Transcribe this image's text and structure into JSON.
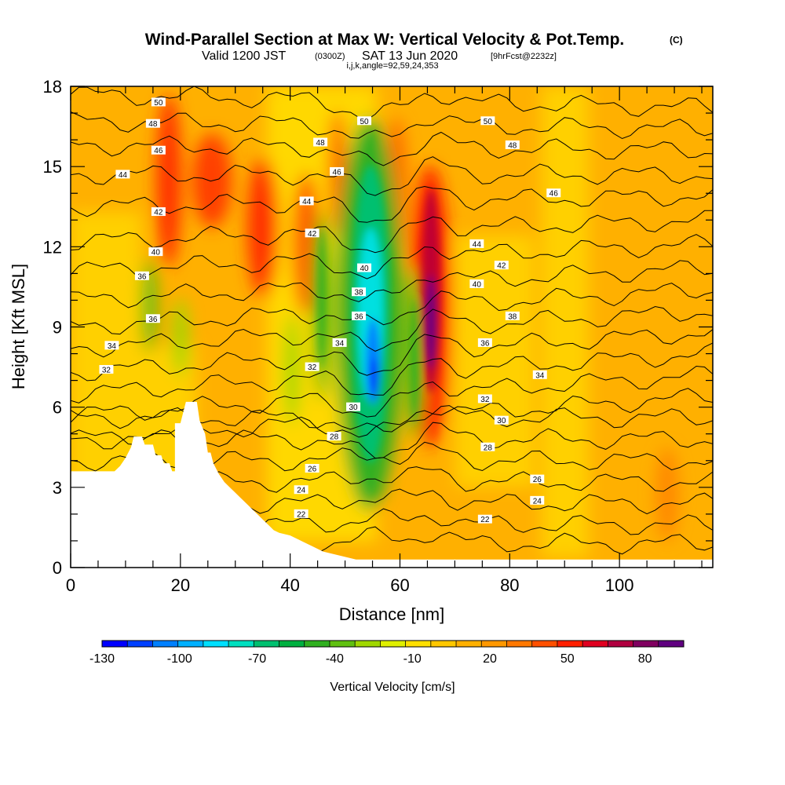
{
  "title": {
    "main": "Wind-Parallel Section at Max W: Vertical Velocity & Pot.Temp.",
    "copyright": "(C)",
    "valid_prefix": "Valid 1200 JST",
    "valid_utc": "(0300Z)",
    "valid_date": "SAT 13 Jun 2020",
    "forecast": "[9hrFcst@2232z]",
    "indices": "i,j,k,angle=92,59,24,353"
  },
  "colors": {
    "background_default": "#ffb000",
    "colorbar": [
      "#0000ff",
      "#0040ff",
      "#0080ff",
      "#00b0ff",
      "#00e0ff",
      "#00e0c0",
      "#00c070",
      "#00b040",
      "#30b020",
      "#60c010",
      "#a0d800",
      "#e0f000",
      "#ffe000",
      "#ffc800",
      "#ffb000",
      "#ff9800",
      "#ff7800",
      "#ff5000",
      "#ff2000",
      "#e00020",
      "#b00040",
      "#800060",
      "#600080"
    ]
  },
  "chart_data": {
    "type": "heatmap",
    "xlabel": "Distance [nm]",
    "ylabel": "Height [Kft MSL]",
    "xlim": [
      0,
      117
    ],
    "ylim": [
      0,
      18
    ],
    "x_ticks": [
      0,
      20,
      40,
      60,
      80,
      100
    ],
    "y_ticks": [
      0,
      3,
      6,
      9,
      12,
      15,
      18
    ],
    "colorbar": {
      "label": "Vertical Velocity [cm/s]",
      "tick_labels": [
        "-130",
        "-100",
        "-70",
        "-40",
        "-10",
        "20",
        "50",
        "80"
      ],
      "range": [
        -130,
        95
      ]
    },
    "terrain_profile": [
      [
        0,
        3.6
      ],
      [
        8,
        3.6
      ],
      [
        9,
        3.8
      ],
      [
        10,
        4.1
      ],
      [
        11,
        4.5
      ],
      [
        11.5,
        4.9
      ],
      [
        13,
        4.9
      ],
      [
        13.5,
        4.6
      ],
      [
        15,
        4.6
      ],
      [
        15.5,
        4.2
      ],
      [
        16.5,
        4.2
      ],
      [
        17,
        3.9
      ],
      [
        18,
        3.9
      ],
      [
        18.5,
        3.6
      ],
      [
        19,
        3.6
      ],
      [
        19,
        5.4
      ],
      [
        20,
        5.4
      ],
      [
        20.5,
        5.8
      ],
      [
        21,
        6.2
      ],
      [
        23,
        6.2
      ],
      [
        23.5,
        5.5
      ],
      [
        24.5,
        5.0
      ],
      [
        25,
        4.3
      ],
      [
        25.5,
        4.3
      ],
      [
        26,
        3.9
      ],
      [
        27,
        3.5
      ],
      [
        28,
        3.2
      ],
      [
        29,
        3.0
      ],
      [
        30,
        2.8
      ],
      [
        31,
        2.6
      ],
      [
        32,
        2.4
      ],
      [
        33,
        2.2
      ],
      [
        34,
        2.0
      ],
      [
        35,
        1.8
      ],
      [
        36,
        1.6
      ],
      [
        37,
        1.4
      ],
      [
        38,
        1.3
      ],
      [
        40,
        1.2
      ],
      [
        42,
        1.0
      ],
      [
        44,
        0.8
      ],
      [
        46,
        0.6
      ],
      [
        48,
        0.5
      ],
      [
        50,
        0.4
      ],
      [
        52,
        0.3
      ],
      [
        60,
        0.3
      ],
      [
        117,
        0.3
      ]
    ],
    "vertical_velocity_features": [
      {
        "x": 36,
        "y": 12,
        "value": 50
      },
      {
        "x": 66,
        "y": 10,
        "value": 90
      },
      {
        "x": 56,
        "y": 7,
        "value": -130
      },
      {
        "x": 45,
        "y": 8,
        "value": -40
      },
      {
        "x": 63,
        "y": 7,
        "value": -40
      }
    ],
    "theta_contour_labels": [
      {
        "value": "50",
        "x": 16,
        "y": 17.4
      },
      {
        "value": "48",
        "x": 15,
        "y": 16.6
      },
      {
        "value": "46",
        "x": 16,
        "y": 15.6
      },
      {
        "value": "44",
        "x": 9.5,
        "y": 14.7
      },
      {
        "value": "42",
        "x": 16,
        "y": 13.3
      },
      {
        "value": "40",
        "x": 15.5,
        "y": 11.8
      },
      {
        "value": "36",
        "x": 13,
        "y": 10.9
      },
      {
        "value": "36",
        "x": 15,
        "y": 9.3
      },
      {
        "value": "34",
        "x": 7.5,
        "y": 8.3
      },
      {
        "value": "32",
        "x": 6.5,
        "y": 7.4
      },
      {
        "value": "50",
        "x": 53.5,
        "y": 16.7
      },
      {
        "value": "48",
        "x": 45.5,
        "y": 15.9
      },
      {
        "value": "46",
        "x": 48.5,
        "y": 14.8
      },
      {
        "value": "44",
        "x": 43,
        "y": 13.7
      },
      {
        "value": "42",
        "x": 44,
        "y": 12.5
      },
      {
        "value": "40",
        "x": 53.5,
        "y": 11.2
      },
      {
        "value": "38",
        "x": 52.5,
        "y": 10.3
      },
      {
        "value": "36",
        "x": 52.5,
        "y": 9.4
      },
      {
        "value": "34",
        "x": 49,
        "y": 8.4
      },
      {
        "value": "32",
        "x": 44,
        "y": 7.5
      },
      {
        "value": "30",
        "x": 51.5,
        "y": 6.0
      },
      {
        "value": "28",
        "x": 48,
        "y": 4.9
      },
      {
        "value": "26",
        "x": 44,
        "y": 3.7
      },
      {
        "value": "24",
        "x": 42,
        "y": 2.9
      },
      {
        "value": "22",
        "x": 42,
        "y": 2.0
      },
      {
        "value": "50",
        "x": 76,
        "y": 16.7
      },
      {
        "value": "48",
        "x": 80.5,
        "y": 15.8
      },
      {
        "value": "46",
        "x": 88,
        "y": 14.0
      },
      {
        "value": "44",
        "x": 74,
        "y": 12.1
      },
      {
        "value": "42",
        "x": 78.5,
        "y": 11.3
      },
      {
        "value": "40",
        "x": 74,
        "y": 10.6
      },
      {
        "value": "38",
        "x": 80.5,
        "y": 9.4
      },
      {
        "value": "36",
        "x": 75.5,
        "y": 8.4
      },
      {
        "value": "34",
        "x": 85.5,
        "y": 7.2
      },
      {
        "value": "32",
        "x": 75.5,
        "y": 6.3
      },
      {
        "value": "30",
        "x": 78.5,
        "y": 5.5
      },
      {
        "value": "28",
        "x": 76,
        "y": 4.5
      },
      {
        "value": "26",
        "x": 85,
        "y": 3.3
      },
      {
        "value": "24",
        "x": 85,
        "y": 2.5
      },
      {
        "value": "22",
        "x": 75.5,
        "y": 1.8
      }
    ],
    "theta_contour_heights_left": [
      17.7,
      16.7,
      15.8,
      14.7,
      13.5,
      12.2,
      11.1,
      10.0,
      9.0,
      8.2,
      7.3,
      6.5,
      5.7,
      4.8
    ],
    "theta_contour_heights_right": [
      17.2,
      16.4,
      15.6,
      14.7,
      13.9,
      13.0,
      12.1,
      11.2,
      10.4,
      9.6,
      8.8,
      8.0,
      7.2,
      6.4,
      5.6,
      4.8,
      4.0,
      3.2,
      2.4,
      1.6,
      0.9
    ]
  }
}
